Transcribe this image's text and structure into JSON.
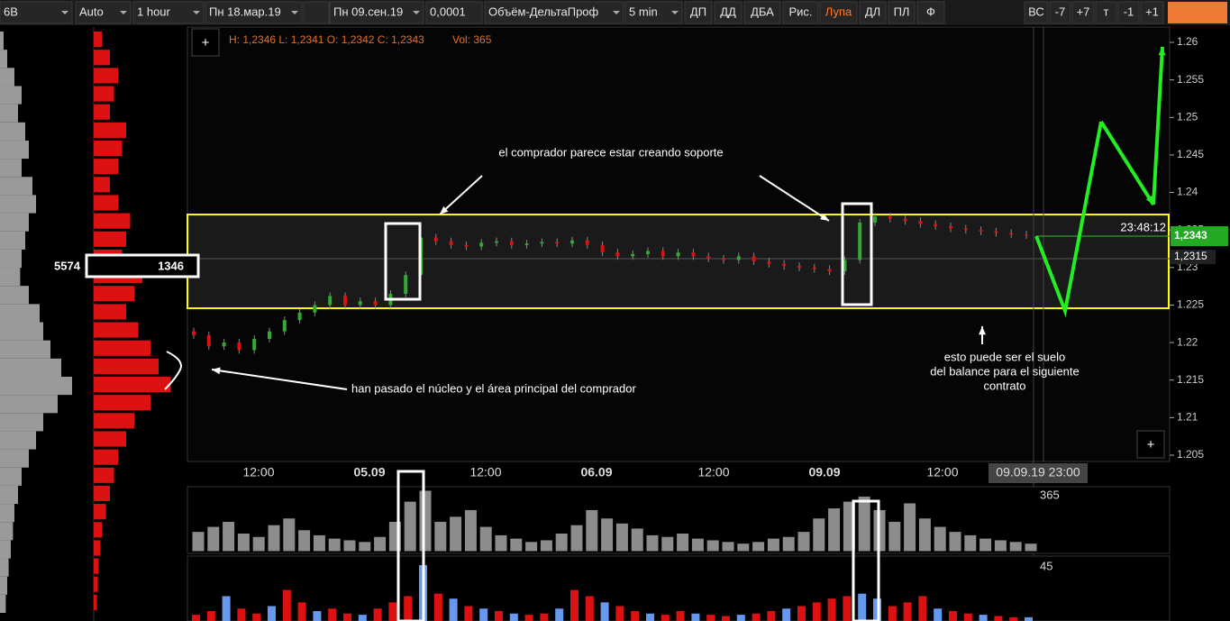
{
  "toolbar": [
    "6B",
    "Auto",
    "1 hour",
    "Пн 18.мар.19",
    "Пн 09.сен.19",
    "0,0001",
    "Объём-ДельтаПроф",
    "5 min",
    "ДП",
    "ДД",
    "ДБА",
    "Рис.",
    "Лупа",
    "ДЛ",
    "ПЛ",
    "Ф",
    "ВС",
    "-7",
    "+7",
    "т",
    "-1",
    "+1"
  ],
  "info": {
    "ohlc": "H: 1,2346 L: 1,2341 O: 1,2342 C: 1,2343",
    "vol": "Vol: 365"
  },
  "profile_labels": {
    "left": "5574",
    "right": "1346"
  },
  "price_labels": {
    "timer": "23:48:12",
    "last": "1,2343",
    "mark": "1,2315"
  },
  "plus": "+",
  "volume_max_label": "365",
  "delta_max_label": "45",
  "time_labels": [
    "12:00",
    "05.09",
    "12:00",
    "06.09",
    "12:00",
    "09.09",
    "12:00",
    "09.09.19 23:00"
  ],
  "annotations": [
    "el comprador parece estar creando soporte",
    "han pasado el núcleo y el área principal del comprador",
    "esto puede ser el suelo",
    "del balance para el  siguiente",
    "contrato"
  ],
  "chart_data": {
    "type": "candlestick",
    "ylim": [
      1.2025,
      1.2625
    ],
    "yticks": [
      1.26,
      1.255,
      1.25,
      1.245,
      1.24,
      1.235,
      1.23,
      1.225,
      1.22,
      1.215,
      1.21,
      1.205
    ],
    "up_color": "#33aa33",
    "down_color": "#dd1111",
    "candles": [
      [
        1.2215,
        1.221
      ],
      [
        1.221,
        1.2195
      ],
      [
        1.2195,
        1.22
      ],
      [
        1.22,
        1.219
      ],
      [
        1.219,
        1.2205
      ],
      [
        1.2205,
        1.2215
      ],
      [
        1.2215,
        1.223
      ],
      [
        1.223,
        1.224
      ],
      [
        1.224,
        1.225
      ],
      [
        1.225,
        1.2262
      ],
      [
        1.2262,
        1.225
      ],
      [
        1.225,
        1.2255
      ],
      [
        1.2255,
        1.225
      ],
      [
        1.225,
        1.2265
      ],
      [
        1.2265,
        1.229
      ],
      [
        1.229,
        1.234
      ],
      [
        1.234,
        1.2335
      ],
      [
        1.2335,
        1.233
      ],
      [
        1.233,
        1.2328
      ],
      [
        1.2328,
        1.2333
      ],
      [
        1.2333,
        1.2335
      ],
      [
        1.2335,
        1.233
      ],
      [
        1.233,
        1.2332
      ],
      [
        1.2332,
        1.2334
      ],
      [
        1.2334,
        1.2332
      ],
      [
        1.2332,
        1.2336
      ],
      [
        1.2336,
        1.233
      ],
      [
        1.233,
        1.232
      ],
      [
        1.232,
        1.2315
      ],
      [
        1.2315,
        1.2318
      ],
      [
        1.2318,
        1.2322
      ],
      [
        1.2322,
        1.2315
      ],
      [
        1.2315,
        1.232
      ],
      [
        1.232,
        1.2315
      ],
      [
        1.2315,
        1.2312
      ],
      [
        1.2312,
        1.231
      ],
      [
        1.231,
        1.2315
      ],
      [
        1.2315,
        1.2308
      ],
      [
        1.2308,
        1.2305
      ],
      [
        1.2305,
        1.2302
      ],
      [
        1.2302,
        1.23
      ],
      [
        1.23,
        1.2298
      ],
      [
        1.2298,
        1.2295
      ],
      [
        1.2295,
        1.231
      ],
      [
        1.231,
        1.236
      ],
      [
        1.236,
        1.2368
      ],
      [
        1.2368,
        1.2365
      ],
      [
        1.2365,
        1.2362
      ],
      [
        1.2362,
        1.2358
      ],
      [
        1.2358,
        1.2355
      ],
      [
        1.2355,
        1.2352
      ],
      [
        1.2352,
        1.235
      ],
      [
        1.235,
        1.2348
      ],
      [
        1.2348,
        1.2346
      ],
      [
        1.2346,
        1.2344
      ],
      [
        1.2344,
        1.2343
      ]
    ],
    "volume": {
      "color": "#8c8c8c",
      "ylim": [
        0,
        365
      ],
      "values": [
        120,
        150,
        180,
        110,
        90,
        160,
        200,
        130,
        100,
        80,
        70,
        60,
        90,
        180,
        300,
        365,
        180,
        210,
        250,
        150,
        100,
        80,
        60,
        70,
        110,
        160,
        250,
        200,
        170,
        140,
        100,
        90,
        110,
        80,
        70,
        60,
        50,
        60,
        80,
        90,
        120,
        200,
        260,
        300,
        330,
        250,
        180,
        290,
        200,
        150,
        120,
        100,
        80,
        70,
        60,
        50
      ]
    },
    "delta": {
      "ylim": [
        0,
        45
      ],
      "values": [
        5,
        8,
        20,
        10,
        6,
        12,
        25,
        15,
        8,
        10,
        6,
        5,
        10,
        15,
        20,
        45,
        22,
        18,
        12,
        10,
        8,
        6,
        5,
        6,
        10,
        25,
        20,
        15,
        12,
        8,
        6,
        5,
        8,
        6,
        5,
        4,
        5,
        6,
        8,
        10,
        12,
        15,
        18,
        20,
        22,
        18,
        12,
        15,
        20,
        10,
        8,
        6,
        5,
        4,
        3,
        3
      ],
      "colors": [
        "#dd1111",
        "#dd1111",
        "#6699ee",
        "#dd1111",
        "#dd1111",
        "#6699ee",
        "#dd1111",
        "#dd1111",
        "#6699ee",
        "#dd1111",
        "#dd1111",
        "#6699ee",
        "#dd1111",
        "#dd1111",
        "#dd1111",
        "#6699ee",
        "#dd1111",
        "#6699ee",
        "#dd1111",
        "#6699ee",
        "#dd1111",
        "#6699ee",
        "#dd1111",
        "#dd1111",
        "#6699ee",
        "#dd1111",
        "#dd1111",
        "#6699ee",
        "#dd1111",
        "#dd1111",
        "#6699ee",
        "#dd1111",
        "#dd1111",
        "#6699ee",
        "#dd1111",
        "#dd1111",
        "#6699ee",
        "#dd1111",
        "#dd1111",
        "#6699ee",
        "#dd1111",
        "#dd1111",
        "#dd1111",
        "#dd1111",
        "#6699ee",
        "#6699ee",
        "#dd1111",
        "#dd1111",
        "#dd1111",
        "#6699ee",
        "#dd1111",
        "#dd1111",
        "#6699ee",
        "#dd1111",
        "#dd1111",
        "#6699ee"
      ]
    },
    "profile": {
      "color": "#9a9a9a",
      "values": [
        5,
        10,
        20,
        30,
        25,
        35,
        40,
        30,
        45,
        50,
        40,
        35,
        30,
        28,
        40,
        55,
        60,
        70,
        85,
        100,
        80,
        60,
        50,
        40,
        30,
        25,
        20,
        18,
        15,
        12,
        10,
        8
      ]
    },
    "profile2": {
      "color": "#dd1111",
      "values": [
        10,
        20,
        30,
        25,
        20,
        40,
        35,
        30,
        20,
        30,
        45,
        40,
        35,
        60,
        50,
        40,
        55,
        70,
        80,
        95,
        70,
        50,
        40,
        30,
        25,
        20,
        15,
        10,
        8,
        6,
        5,
        4
      ]
    }
  }
}
